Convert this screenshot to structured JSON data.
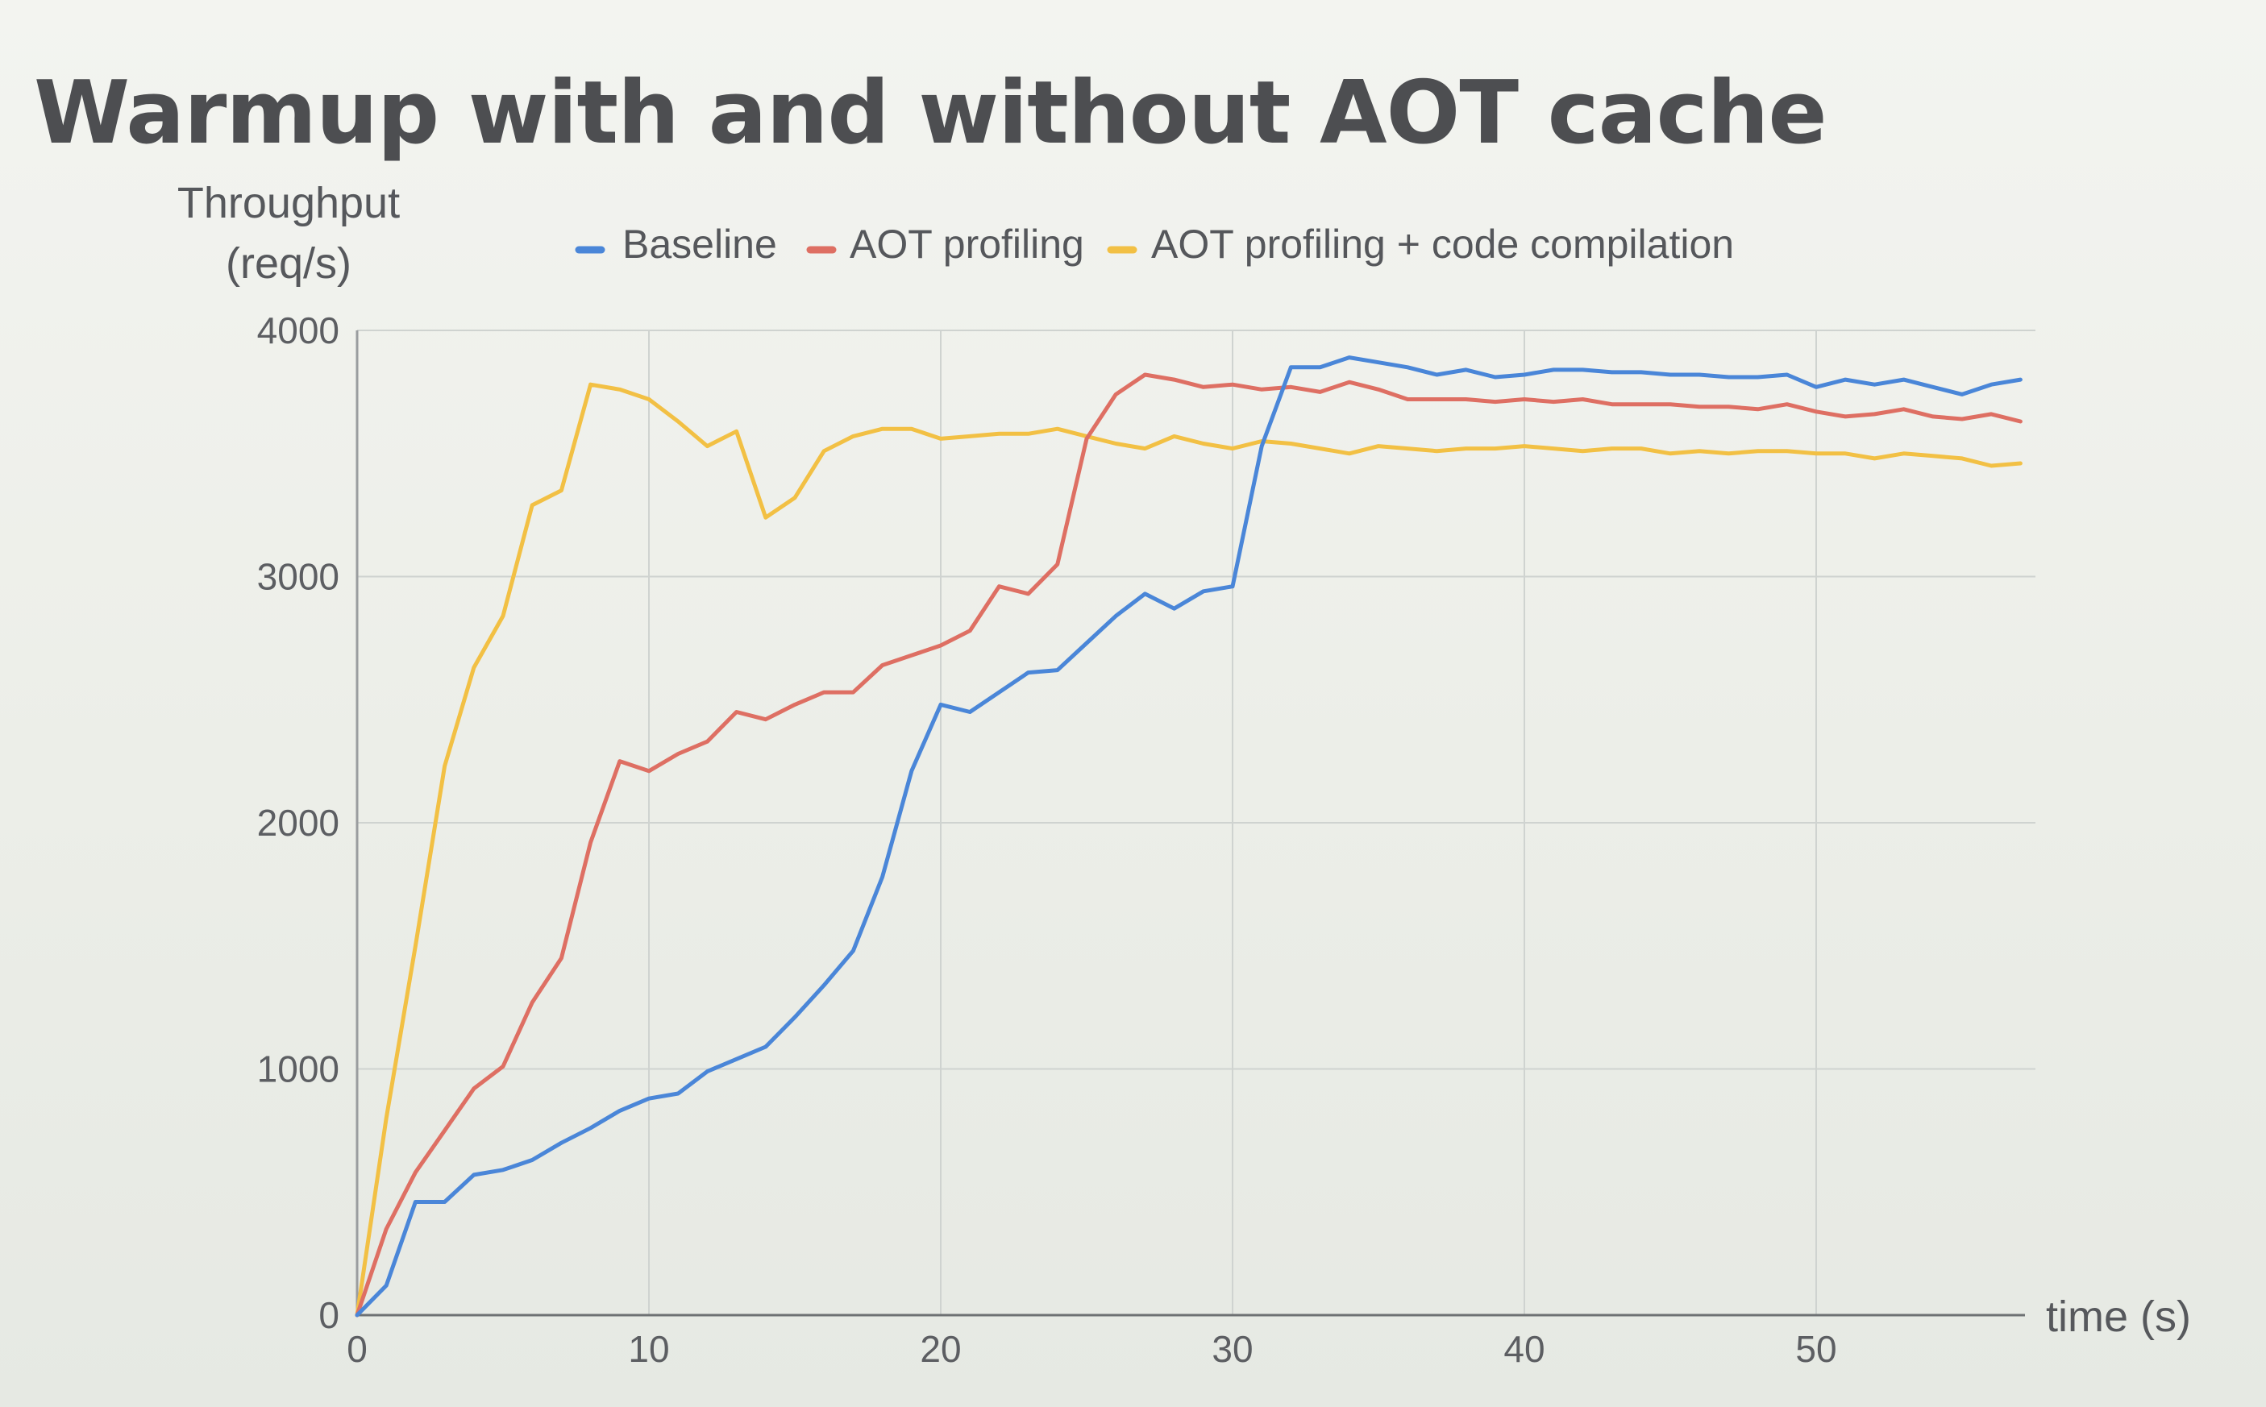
{
  "slide": {
    "title": "Warmup with and without AOT cache"
  },
  "chart_data": {
    "type": "line",
    "title": "",
    "xlabel": "time (s)",
    "ylabel": "Throughput (req/s)",
    "ylabel_lines": [
      "Throughput",
      "(req/s)"
    ],
    "xlim": [
      0,
      57.5
    ],
    "ylim": [
      0,
      4000
    ],
    "xticks": [
      0,
      10,
      20,
      30,
      40,
      50
    ],
    "yticks": [
      0,
      1000,
      2000,
      3000,
      4000
    ],
    "grid": true,
    "legend_position": "top",
    "x": [
      0,
      1,
      2,
      3,
      4,
      5,
      6,
      7,
      8,
      9,
      10,
      11,
      12,
      13,
      14,
      15,
      16,
      17,
      18,
      19,
      20,
      21,
      22,
      23,
      24,
      25,
      26,
      27,
      28,
      29,
      30,
      31,
      32,
      33,
      34,
      35,
      36,
      37,
      38,
      39,
      40,
      41,
      42,
      43,
      44,
      45,
      46,
      47,
      48,
      49,
      50,
      51,
      52,
      53,
      54,
      55,
      56,
      57
    ],
    "series": [
      {
        "name": "Baseline",
        "color": "#4a86d8",
        "values": [
          0,
          120,
          460,
          460,
          570,
          590,
          630,
          700,
          760,
          830,
          880,
          900,
          990,
          1040,
          1090,
          1210,
          1340,
          1480,
          1780,
          2210,
          2480,
          2450,
          2530,
          2610,
          2620,
          2730,
          2840,
          2930,
          2870,
          2940,
          2960,
          3530,
          3850,
          3850,
          3890,
          3870,
          3850,
          3820,
          3840,
          3810,
          3820,
          3840,
          3840,
          3830,
          3830,
          3820,
          3820,
          3810,
          3810,
          3820,
          3770,
          3800,
          3780,
          3800,
          3770,
          3740,
          3780,
          3800
        ]
      },
      {
        "name": "AOT profiling",
        "color": "#de6f63",
        "values": [
          0,
          350,
          580,
          750,
          920,
          1010,
          1270,
          1450,
          1920,
          2250,
          2210,
          2280,
          2330,
          2450,
          2420,
          2480,
          2530,
          2530,
          2640,
          2680,
          2720,
          2780,
          2960,
          2930,
          3050,
          3560,
          3740,
          3820,
          3800,
          3770,
          3780,
          3760,
          3770,
          3750,
          3790,
          3760,
          3720,
          3720,
          3720,
          3710,
          3720,
          3710,
          3720,
          3700,
          3700,
          3700,
          3690,
          3690,
          3680,
          3700,
          3670,
          3650,
          3660,
          3680,
          3650,
          3640,
          3660,
          3630
        ]
      },
      {
        "name": "AOT profiling + code compilation",
        "color": "#f2c044",
        "values": [
          0,
          800,
          1500,
          2230,
          2630,
          2840,
          3290,
          3350,
          3780,
          3760,
          3720,
          3630,
          3530,
          3590,
          3240,
          3320,
          3510,
          3570,
          3600,
          3600,
          3560,
          3570,
          3580,
          3580,
          3600,
          3570,
          3540,
          3520,
          3570,
          3540,
          3520,
          3550,
          3540,
          3520,
          3500,
          3530,
          3520,
          3510,
          3520,
          3520,
          3530,
          3520,
          3510,
          3520,
          3520,
          3500,
          3510,
          3500,
          3510,
          3510,
          3500,
          3500,
          3480,
          3500,
          3490,
          3480,
          3450,
          3460
        ]
      }
    ]
  }
}
